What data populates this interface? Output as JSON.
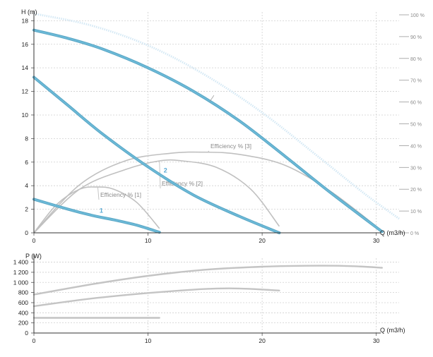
{
  "chart_data": [
    {
      "type": "line",
      "xlabel": "Q (m3/h)",
      "ylabel": "H (m)",
      "xlim": [
        0,
        32
      ],
      "ylim": [
        0,
        18.5
      ],
      "x_ticks": [
        "0",
        "10",
        "20",
        "30"
      ],
      "y_ticks": [
        "0",
        "2",
        "4",
        "6",
        "8",
        "10",
        "12",
        "14",
        "16",
        "18"
      ],
      "y2_ticks": [
        "0 %",
        "10 %",
        "20 %",
        "30 %",
        "40 %",
        "50 %",
        "60 %",
        "70 %",
        "80 %",
        "90 %",
        "100 %"
      ],
      "y2_max": 100,
      "grid": true,
      "colors": {
        "head": "#6cbad8",
        "head_dark": "#5aa6c4",
        "efficiency": "#c0c0c0",
        "envelope": "#d5e9f5",
        "grid": "#cfcfcf",
        "label": "#5aaad4"
      },
      "head_curves": [
        {
          "label": "1",
          "x": [
            0,
            3,
            5,
            7,
            9,
            11
          ],
          "y": [
            2.85,
            2.0,
            1.5,
            1.1,
            0.65,
            0.05
          ]
        },
        {
          "label": "2",
          "x": [
            0,
            3,
            6,
            10,
            14,
            18,
            21.5
          ],
          "y": [
            13.2,
            10.8,
            8.4,
            5.6,
            3.2,
            1.4,
            0.0
          ]
        },
        {
          "label": "",
          "x": [
            0,
            3,
            6,
            10,
            14,
            18,
            22,
            26,
            30.5
          ],
          "y": [
            17.2,
            16.5,
            15.6,
            14.0,
            12.0,
            9.5,
            6.5,
            3.4,
            0.1
          ]
        }
      ],
      "max_envelope": {
        "x": [
          0,
          5,
          10,
          15,
          20,
          25,
          29,
          32
        ],
        "y": [
          18.6,
          17.6,
          15.9,
          13.4,
          10.2,
          6.4,
          3.3,
          1.2
        ]
      },
      "efficiency_curves": [
        {
          "label": "Efficiency % [1]",
          "x": [
            0,
            2,
            4,
            5.5,
            7,
            9,
            11
          ],
          "y": [
            0,
            13,
            20,
            21,
            20,
            14,
            2
          ]
        },
        {
          "label": "Efficiency % [2]",
          "x": [
            0,
            4,
            8,
            11,
            13,
            16,
            19,
            21.5
          ],
          "y": [
            0,
            20,
            29,
            33,
            33,
            30,
            20,
            3
          ]
        },
        {
          "label": "Efficiency % [3]",
          "x": [
            0,
            4,
            8,
            12,
            15,
            18,
            22,
            26,
            30
          ],
          "y": [
            0,
            22,
            33,
            36.5,
            37,
            36,
            31,
            19,
            3
          ]
        }
      ]
    },
    {
      "type": "line",
      "xlabel": "Q (m3/h)",
      "ylabel": "P (W)",
      "xlim": [
        0,
        32
      ],
      "ylim": [
        0,
        1450
      ],
      "x_ticks": [
        "0",
        "10",
        "20",
        "30"
      ],
      "y_ticks": [
        "0",
        "200",
        "400",
        "600",
        "800",
        "1 000",
        "1 200",
        "1 400"
      ],
      "grid": true,
      "series": [
        {
          "x": [
            0,
            11
          ],
          "y": [
            300,
            300
          ]
        },
        {
          "x": [
            0,
            5,
            10,
            15,
            18,
            21.5
          ],
          "y": [
            530,
            680,
            790,
            870,
            880,
            840
          ]
        },
        {
          "x": [
            0,
            5,
            10,
            15,
            20,
            25,
            28,
            30.5
          ],
          "y": [
            760,
            960,
            1130,
            1250,
            1310,
            1330,
            1320,
            1290
          ]
        }
      ]
    }
  ]
}
